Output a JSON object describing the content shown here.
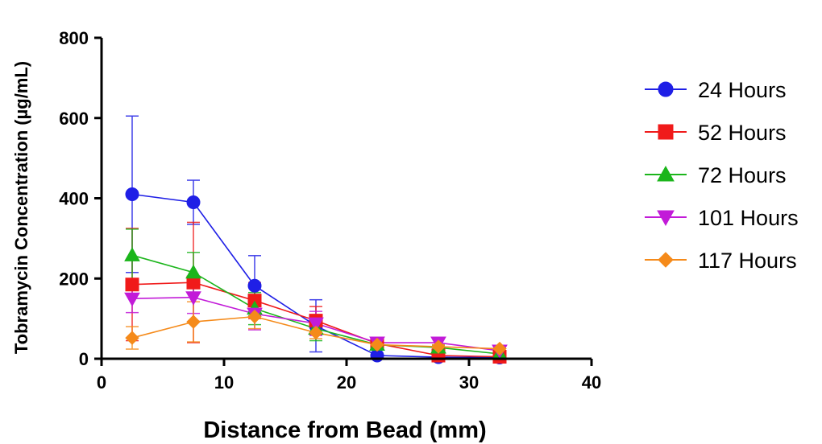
{
  "chart_data": {
    "type": "line",
    "xlabel": "Distance from  Bead (mm)",
    "ylabel": "Tobramycin Concentration (µg/mL)",
    "xlim": [
      0,
      40
    ],
    "ylim": [
      0,
      800
    ],
    "xticks": [
      0,
      10,
      20,
      30,
      40
    ],
    "yticks": [
      0,
      200,
      400,
      600,
      800
    ],
    "grid": false,
    "legend_position": "right",
    "series": [
      {
        "name": "24 Hours",
        "color": "#1f1fe6",
        "marker": "circle",
        "x": [
          2.5,
          7.5,
          12.5,
          17.5,
          22.5,
          27.5,
          32.5
        ],
        "y": [
          410,
          390,
          182,
          82,
          8,
          4,
          3
        ],
        "err": [
          195,
          55,
          75,
          65,
          5,
          3,
          2
        ]
      },
      {
        "name": "52 Hours",
        "color": "#f01a1a",
        "marker": "square",
        "x": [
          2.5,
          7.5,
          12.5,
          17.5,
          22.5,
          27.5,
          32.5
        ],
        "y": [
          185,
          190,
          145,
          95,
          38,
          8,
          5
        ],
        "err": [
          140,
          150,
          45,
          35,
          8,
          4,
          3
        ]
      },
      {
        "name": "72 Hours",
        "color": "#1bb51b",
        "marker": "triangle-up",
        "x": [
          2.5,
          7.5,
          12.5,
          17.5,
          22.5,
          27.5,
          32.5
        ],
        "y": [
          258,
          215,
          125,
          75,
          35,
          28,
          12
        ],
        "err": [
          65,
          50,
          40,
          30,
          8,
          6,
          4
        ]
      },
      {
        "name": "101 Hours",
        "color": "#c21bd8",
        "marker": "triangle-down",
        "x": [
          2.5,
          7.5,
          12.5,
          17.5,
          22.5,
          27.5,
          32.5
        ],
        "y": [
          150,
          153,
          112,
          88,
          40,
          40,
          20
        ],
        "err": [
          35,
          40,
          40,
          30,
          8,
          10,
          5
        ]
      },
      {
        "name": "117 Hours",
        "color": "#f58a1a",
        "marker": "diamond",
        "x": [
          2.5,
          7.5,
          12.5,
          17.5,
          22.5,
          27.5,
          32.5
        ],
        "y": [
          52,
          92,
          105,
          65,
          35,
          30,
          25
        ],
        "err": [
          28,
          50,
          30,
          15,
          6,
          5,
          5
        ]
      }
    ]
  }
}
